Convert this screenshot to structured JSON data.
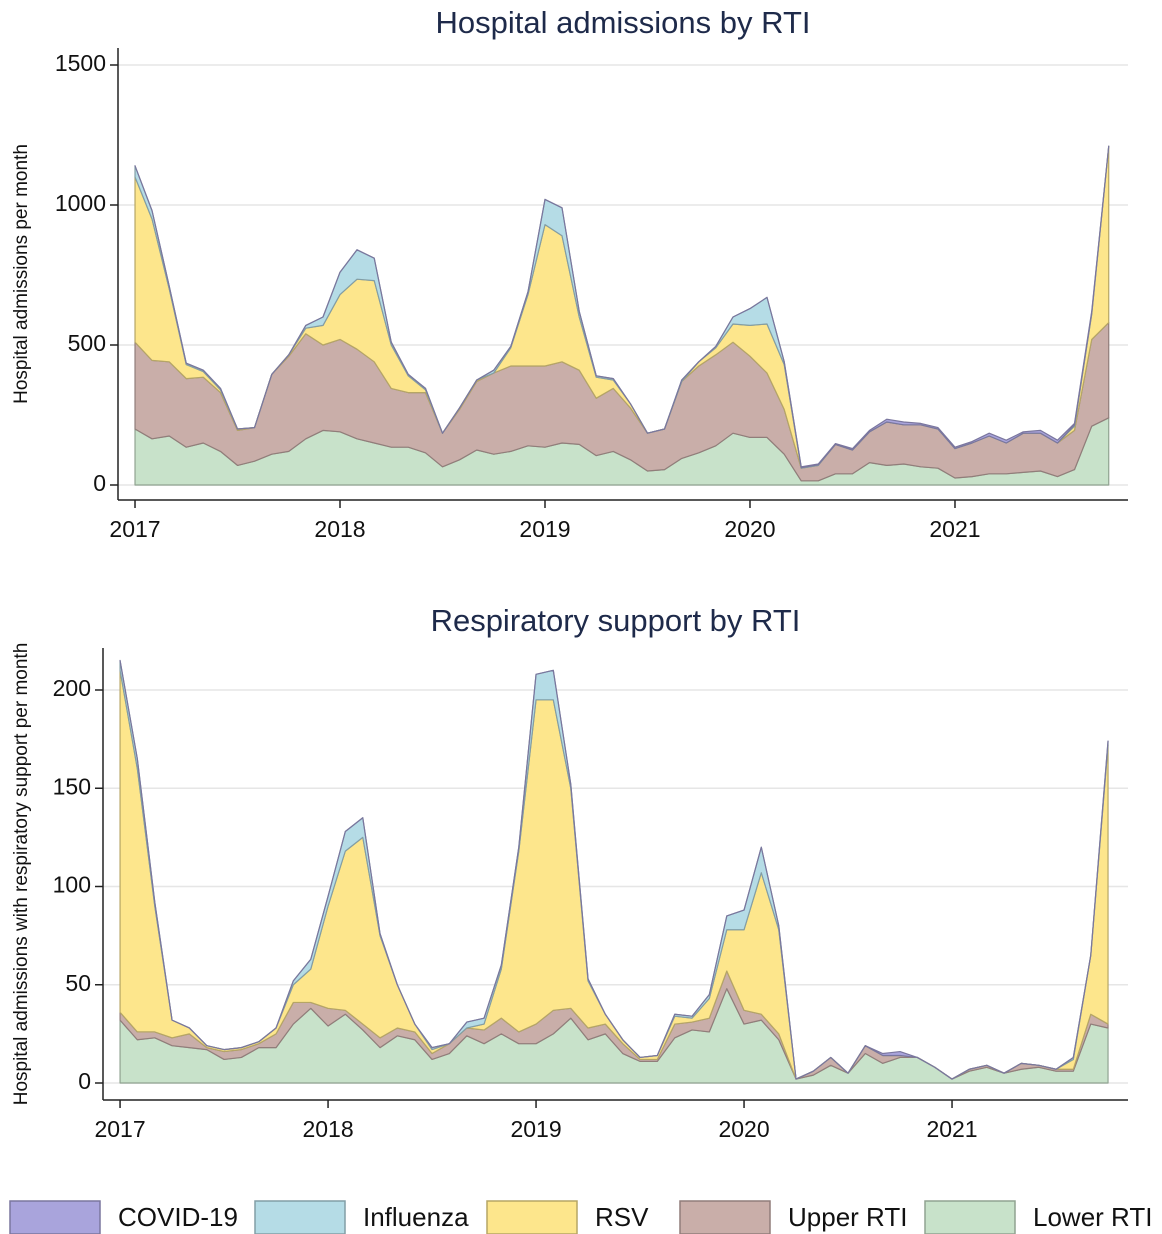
{
  "chart_data": [
    {
      "type": "area",
      "stacked": true,
      "title": "Hospital admissions by RTI",
      "y_label": "Hospital admissions per month",
      "x": [
        2017,
        2017.083,
        2017.167,
        2017.25,
        2017.333,
        2017.417,
        2017.5,
        2017.583,
        2017.667,
        2017.75,
        2017.833,
        2017.917,
        2018,
        2018.083,
        2018.167,
        2018.25,
        2018.333,
        2018.417,
        2018.5,
        2018.583,
        2018.667,
        2018.75,
        2018.833,
        2018.917,
        2019,
        2019.083,
        2019.167,
        2019.25,
        2019.333,
        2019.417,
        2019.5,
        2019.583,
        2019.667,
        2019.75,
        2019.833,
        2019.917,
        2020,
        2020.083,
        2020.167,
        2020.25,
        2020.333,
        2020.417,
        2020.5,
        2020.583,
        2020.667,
        2020.75,
        2020.833,
        2020.917,
        2021,
        2021.083,
        2021.167,
        2021.25,
        2021.333,
        2021.417,
        2021.5,
        2021.583,
        2021.667,
        2021.75
      ],
      "series": [
        {
          "name": "COVID-19",
          "color": "#a9a4dc",
          "values": [
            0,
            0,
            0,
            0,
            0,
            0,
            0,
            0,
            0,
            0,
            0,
            0,
            0,
            0,
            0,
            0,
            0,
            0,
            0,
            0,
            0,
            0,
            0,
            0,
            0,
            0,
            0,
            0,
            0,
            0,
            0,
            0,
            0,
            0,
            0,
            0,
            0,
            0,
            0,
            3,
            3,
            3,
            5,
            5,
            10,
            10,
            5,
            5,
            5,
            5,
            10,
            10,
            5,
            10,
            10,
            5,
            5,
            0
          ]
        },
        {
          "name": "Influenza",
          "color": "#b5dce6",
          "values": [
            40,
            30,
            10,
            5,
            5,
            5,
            0,
            0,
            0,
            0,
            10,
            30,
            80,
            105,
            80,
            10,
            5,
            5,
            0,
            0,
            0,
            10,
            5,
            10,
            90,
            100,
            20,
            5,
            5,
            0,
            0,
            0,
            5,
            0,
            5,
            25,
            60,
            95,
            10,
            2,
            2,
            0,
            0,
            0,
            0,
            0,
            0,
            0,
            0,
            0,
            0,
            0,
            0,
            0,
            0,
            5,
            5,
            0
          ]
        },
        {
          "name": "RSV",
          "color": "#fde68c",
          "values": [
            590,
            505,
            260,
            50,
            20,
            10,
            5,
            0,
            0,
            5,
            20,
            70,
            160,
            250,
            290,
            155,
            60,
            10,
            0,
            5,
            5,
            0,
            65,
            255,
            505,
            450,
            190,
            75,
            30,
            15,
            0,
            0,
            0,
            15,
            25,
            65,
            110,
            175,
            160,
            0,
            0,
            0,
            0,
            0,
            0,
            0,
            0,
            0,
            0,
            0,
            0,
            0,
            0,
            0,
            0,
            15,
            90,
            630
          ]
        },
        {
          "name": "Upper RTI",
          "color": "#c9aea9",
          "values": [
            310,
            280,
            265,
            245,
            235,
            210,
            125,
            120,
            285,
            340,
            375,
            305,
            330,
            320,
            290,
            210,
            195,
            215,
            120,
            180,
            245,
            290,
            305,
            285,
            290,
            290,
            265,
            205,
            225,
            185,
            135,
            145,
            275,
            310,
            325,
            325,
            290,
            230,
            160,
            45,
            55,
            105,
            85,
            110,
            155,
            140,
            150,
            140,
            105,
            120,
            135,
            110,
            140,
            135,
            120,
            140,
            310,
            340
          ]
        },
        {
          "name": "Lower RTI",
          "color": "#c8e2ca",
          "values": [
            200,
            165,
            175,
            135,
            150,
            120,
            70,
            85,
            110,
            120,
            165,
            195,
            190,
            165,
            150,
            135,
            135,
            115,
            65,
            90,
            125,
            110,
            120,
            140,
            135,
            150,
            145,
            105,
            120,
            90,
            50,
            55,
            95,
            115,
            140,
            185,
            170,
            170,
            110,
            15,
            15,
            40,
            40,
            80,
            70,
            75,
            65,
            60,
            25,
            30,
            40,
            40,
            45,
            50,
            30,
            55,
            210,
            240
          ]
        }
      ],
      "xlim": [
        2016.917,
        2021.844
      ],
      "xticks": [
        2017,
        2018,
        2019,
        2020,
        2021
      ],
      "ylim": [
        0,
        1500
      ],
      "yticks": [
        0,
        500,
        1000,
        1500
      ],
      "grid": true,
      "legend": "bottom"
    },
    {
      "type": "area",
      "stacked": true,
      "title": "Respiratory support by RTI",
      "y_label": "Hospital admissions with respiratory support  per month",
      "x": [
        2017,
        2017.083,
        2017.167,
        2017.25,
        2017.333,
        2017.417,
        2017.5,
        2017.583,
        2017.667,
        2017.75,
        2017.833,
        2017.917,
        2018,
        2018.083,
        2018.167,
        2018.25,
        2018.333,
        2018.417,
        2018.5,
        2018.583,
        2018.667,
        2018.75,
        2018.833,
        2018.917,
        2019,
        2019.083,
        2019.167,
        2019.25,
        2019.333,
        2019.417,
        2019.5,
        2019.583,
        2019.667,
        2019.75,
        2019.833,
        2019.917,
        2020,
        2020.083,
        2020.167,
        2020.25,
        2020.333,
        2020.417,
        2020.5,
        2020.583,
        2020.667,
        2020.75,
        2020.833,
        2020.917,
        2021,
        2021.083,
        2021.167,
        2021.25,
        2021.333,
        2021.417,
        2021.5,
        2021.583,
        2021.667,
        2021.75
      ],
      "series": [
        {
          "name": "COVID-19",
          "color": "#a9a4dc",
          "values": [
            0,
            0,
            0,
            0,
            0,
            0,
            0,
            0,
            0,
            0,
            0,
            0,
            0,
            0,
            0,
            0,
            0,
            0,
            0,
            0,
            0,
            0,
            0,
            0,
            0,
            0,
            0,
            0,
            0,
            0,
            0,
            0,
            0,
            0,
            0,
            0,
            0,
            0,
            0,
            0,
            0,
            0,
            0,
            0,
            1,
            2,
            0,
            0,
            0,
            0,
            0,
            0,
            0,
            0,
            0,
            0,
            0,
            0
          ]
        },
        {
          "name": "Influenza",
          "color": "#b5dce6",
          "values": [
            5,
            5,
            2,
            0,
            0,
            0,
            0,
            0,
            0,
            0,
            2,
            5,
            5,
            10,
            10,
            1,
            0,
            0,
            1,
            0,
            3,
            3,
            2,
            2,
            13,
            15,
            2,
            1,
            0,
            0,
            0,
            0,
            1,
            1,
            2,
            7,
            10,
            13,
            2,
            0,
            0,
            0,
            0,
            0,
            0,
            0,
            0,
            0,
            0,
            0,
            0,
            0,
            0,
            0,
            0,
            1,
            0,
            2
          ]
        },
        {
          "name": "RSV",
          "color": "#fde68c",
          "values": [
            174,
            134,
            64,
            9,
            3,
            1,
            1,
            1,
            1,
            3,
            9,
            17,
            52,
            81,
            95,
            52,
            22,
            4,
            2,
            0,
            0,
            3,
            25,
            92,
            165,
            158,
            112,
            24,
            5,
            2,
            1,
            2,
            4,
            2,
            10,
            21,
            41,
            72,
            53,
            0,
            0,
            0,
            0,
            0,
            0,
            0,
            0,
            0,
            0,
            0,
            0,
            0,
            0,
            0,
            0,
            5,
            30,
            142
          ]
        },
        {
          "name": "Upper RTI",
          "color": "#c9aea9",
          "values": [
            4,
            4,
            3,
            4,
            7,
            1,
            4,
            4,
            2,
            7,
            11,
            3,
            9,
            2,
            3,
            5,
            4,
            4,
            3,
            5,
            4,
            7,
            8,
            6,
            10,
            12,
            5,
            6,
            5,
            5,
            1,
            1,
            7,
            4,
            7,
            9,
            7,
            3,
            3,
            0,
            2,
            4,
            0,
            4,
            4,
            1,
            0,
            0,
            0,
            1,
            1,
            0,
            3,
            1,
            1,
            1,
            5,
            2
          ]
        },
        {
          "name": "Lower RTI",
          "color": "#c8e2ca",
          "values": [
            32,
            22,
            23,
            19,
            18,
            17,
            12,
            13,
            18,
            18,
            30,
            38,
            29,
            35,
            27,
            18,
            24,
            22,
            12,
            15,
            24,
            20,
            25,
            20,
            20,
            25,
            33,
            22,
            25,
            15,
            11,
            11,
            23,
            27,
            26,
            48,
            30,
            32,
            22,
            2,
            4,
            9,
            5,
            15,
            10,
            13,
            13,
            8,
            2,
            6,
            8,
            5,
            7,
            8,
            6,
            6,
            30,
            28
          ]
        }
      ],
      "xlim": [
        2016.918,
        2021.846
      ],
      "xticks": [
        2017,
        2018,
        2019,
        2020,
        2021
      ],
      "ylim": [
        0,
        200
      ],
      "yticks": [
        0,
        50,
        100,
        150,
        200
      ],
      "grid": true
    }
  ]
}
